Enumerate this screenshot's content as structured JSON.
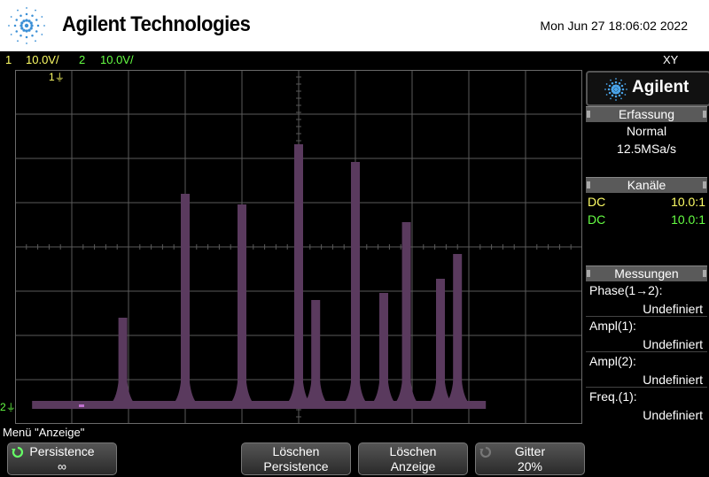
{
  "header": {
    "brand": "Agilent Technologies",
    "datetime": "Mon Jun 27 18:06:02 2022"
  },
  "channel_bar": {
    "ch1_num": "1",
    "ch1_scale": "10.0V/",
    "ch2_num": "2",
    "ch2_scale": "10.0V/",
    "mode": "XY"
  },
  "markers": {
    "trigger_marker": "1",
    "ground_marker": "2"
  },
  "colors": {
    "trace": "#5a3a5e",
    "grid": "#5a5a5a",
    "ch1": "#ffff66",
    "ch2": "#66ff44"
  },
  "side_panel": {
    "logo": "Agilent",
    "acquisition": {
      "title": "Erfassung",
      "mode": "Normal",
      "rate": "12.5MSa/s"
    },
    "channels": {
      "title": "Kanäle",
      "rows": [
        {
          "coupling": "DC",
          "probe": "10.0:1"
        },
        {
          "coupling": "DC",
          "probe": "10.0:1"
        }
      ]
    },
    "measurements": {
      "title": "Messungen",
      "items": [
        {
          "label": "Phase(1→2):",
          "value": "Undefiniert"
        },
        {
          "label": "Ampl(1):",
          "value": "Undefiniert"
        },
        {
          "label": "Ampl(2):",
          "value": "Undefiniert"
        },
        {
          "label": "Freq.(1):",
          "value": "Undefiniert"
        }
      ]
    }
  },
  "menu": {
    "title": "Menü \"Anzeige\"",
    "softkeys": [
      {
        "line1": "Persistence",
        "line2": "∞",
        "icon": "rotate-knob-icon"
      },
      {
        "line1": "Löschen",
        "line2": "Persistence"
      },
      {
        "line1": "Löschen",
        "line2": "Anzeige"
      },
      {
        "line1": "Gitter",
        "line2": "20%",
        "icon": "rotate-knob-icon"
      }
    ]
  },
  "trace_peaks": [
    {
      "x": 0.19,
      "h": 0.25
    },
    {
      "x": 0.3,
      "h": 0.6
    },
    {
      "x": 0.4,
      "h": 0.57
    },
    {
      "x": 0.5,
      "h": 0.74
    },
    {
      "x": 0.53,
      "h": 0.3
    },
    {
      "x": 0.6,
      "h": 0.69
    },
    {
      "x": 0.65,
      "h": 0.32
    },
    {
      "x": 0.69,
      "h": 0.52
    },
    {
      "x": 0.75,
      "h": 0.36
    },
    {
      "x": 0.78,
      "h": 0.43
    }
  ]
}
